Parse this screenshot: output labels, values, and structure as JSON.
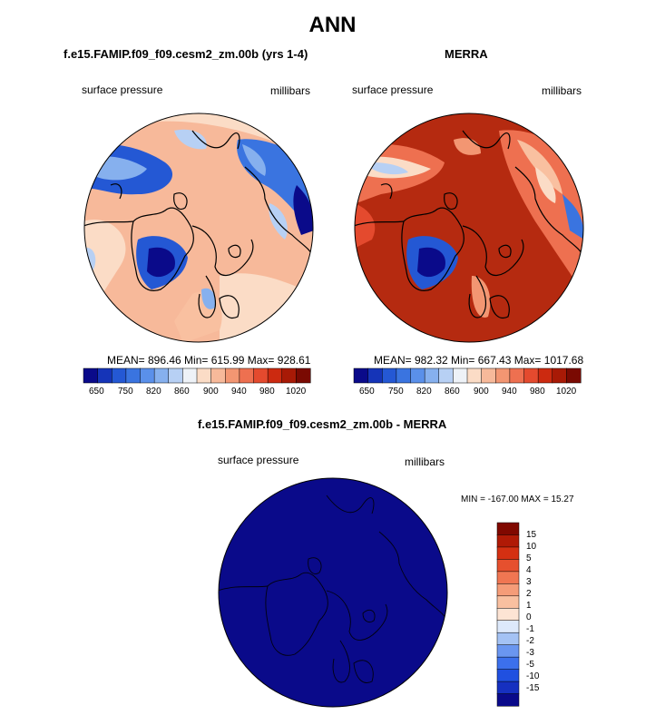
{
  "figure_title": "ANN",
  "colors": {
    "cmap": [
      "#0a0a8a",
      "#1534b8",
      "#2458d4",
      "#3a74e0",
      "#5a90ea",
      "#86b0ee",
      "#b7d0f4",
      "#eef2f7",
      "#fbdcc6",
      "#f7b99a",
      "#f39672",
      "#ee7050",
      "#e44a2e",
      "#cc2a10",
      "#a81a06",
      "#7a0a02"
    ],
    "diff_cmap": [
      "#0a0a8a",
      "#1630c0",
      "#2050e0",
      "#3c70ec",
      "#6a96f0",
      "#a4c2f4",
      "#dde9fb",
      "#fde4d4",
      "#f9c0a0",
      "#f59c78",
      "#f07652",
      "#e6502e",
      "#d43012",
      "#b01a06",
      "#800800"
    ],
    "land_outline": "#000000"
  },
  "panels": {
    "model": {
      "title": "f.e15.FAMIP.f09_f09.cesm2_zm.00b (yrs 1-4)",
      "left_label": "surface pressure",
      "right_label": "millibars",
      "stats": "MEAN= 896.46  Min= 615.99  Max= 928.61"
    },
    "obs": {
      "title": "MERRA",
      "left_label": "surface pressure",
      "right_label": "millibars",
      "stats": "MEAN= 982.32  Min= 667.43  Max= 1017.68"
    },
    "diff": {
      "title": "f.e15.FAMIP.f09_f09.cesm2_zm.00b - MERRA",
      "left_label": "surface pressure",
      "right_label": "millibars",
      "stats": "MIN = -167.00 MAX =  15.27"
    }
  },
  "colorbar_main": {
    "tick_labels": [
      "650",
      "750",
      "820",
      "860",
      "900",
      "940",
      "980",
      "1020"
    ]
  },
  "colorbar_diff": {
    "tick_labels": [
      "15",
      "10",
      "5",
      "4",
      "3",
      "2",
      "1",
      "0",
      "-1",
      "-2",
      "-3",
      "-5",
      "-10",
      "-15"
    ]
  },
  "chart_data": [
    {
      "type": "heatmap",
      "title": "f.e15.FAMIP.f09_f09.cesm2_zm.00b (yrs 1-4)",
      "variable": "surface pressure",
      "units": "millibars",
      "projection": "north polar stereographic",
      "mean": 896.46,
      "min": 615.99,
      "max": 928.61,
      "contour_levels": [
        650,
        700,
        750,
        800,
        820,
        840,
        860,
        880,
        900,
        920,
        940,
        960,
        980,
        1000,
        1020
      ]
    },
    {
      "type": "heatmap",
      "title": "MERRA",
      "variable": "surface pressure",
      "units": "millibars",
      "projection": "north polar stereographic",
      "mean": 982.32,
      "min": 667.43,
      "max": 1017.68,
      "contour_levels": [
        650,
        700,
        750,
        800,
        820,
        840,
        860,
        880,
        900,
        920,
        940,
        960,
        980,
        1000,
        1020
      ]
    },
    {
      "type": "heatmap",
      "title": "f.e15.FAMIP.f09_f09.cesm2_zm.00b - MERRA",
      "variable": "surface pressure",
      "units": "millibars",
      "projection": "north polar stereographic",
      "min": -167.0,
      "max": 15.27,
      "contour_levels": [
        -15,
        -10,
        -5,
        -3,
        -2,
        -1,
        0,
        1,
        2,
        3,
        4,
        5,
        10,
        15
      ]
    }
  ]
}
